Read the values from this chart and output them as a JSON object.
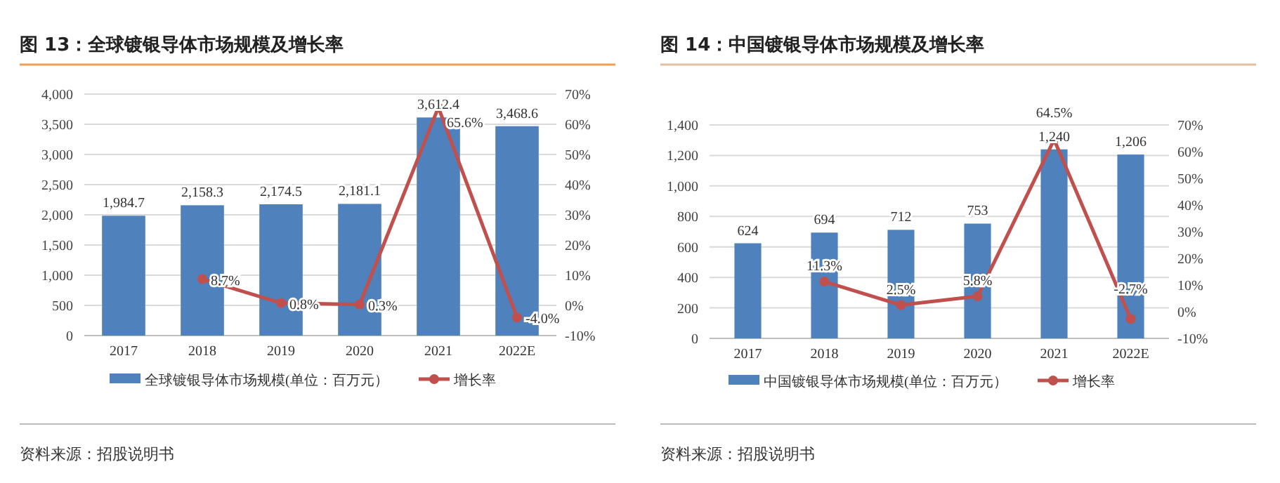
{
  "chart_data": [
    {
      "type": "bar",
      "title": "图 13：全球镀银导体市场规模及增长率",
      "categories": [
        "2017",
        "2018",
        "2019",
        "2020",
        "2021",
        "2022E"
      ],
      "series": [
        {
          "name": "全球镀银导体市场规模(单位：百万元）",
          "type": "bar",
          "color": "#4f81bd",
          "values": [
            1984.7,
            2158.3,
            2174.5,
            2181.1,
            3612.4,
            3468.6
          ],
          "value_labels": [
            "1,984.7",
            "2,158.3",
            "2,174.5",
            "2,181.1",
            "3,612.4",
            "3,468.6"
          ]
        },
        {
          "name": "增长率",
          "type": "line",
          "axis": "y2",
          "color": "#c0504d",
          "values": [
            null,
            8.7,
            0.8,
            0.3,
            65.6,
            -4.0
          ],
          "value_labels": [
            null,
            "8.7%",
            "0.8%",
            "0.3%",
            "65.6%",
            "-4.0%"
          ]
        }
      ],
      "ylim": [
        0,
        4000
      ],
      "yticks": [
        0,
        {
          "value": 500,
          "label": "500"
        },
        {
          "value": 1000,
          "label": "1,000"
        },
        {
          "value": 1500,
          "label": "1,500"
        },
        {
          "value": 2000,
          "label": "2,000"
        },
        {
          "value": 2500,
          "label": "2,500"
        },
        {
          "value": 3000,
          "label": "3,000"
        },
        {
          "value": 3500,
          "label": "3,500"
        },
        {
          "value": 4000,
          "label": "4,000"
        }
      ],
      "y2lim": [
        -10,
        70
      ],
      "y2ticks": [
        {
          "value": -10,
          "label": "-10%"
        },
        {
          "value": 0,
          "label": "0%"
        },
        {
          "value": 10,
          "label": "10%"
        },
        {
          "value": 20,
          "label": "20%"
        },
        {
          "value": 30,
          "label": "30%"
        },
        {
          "value": 40,
          "label": "40%"
        },
        {
          "value": 50,
          "label": "50%"
        },
        {
          "value": 60,
          "label": "60%"
        },
        {
          "value": 70,
          "label": "70%"
        }
      ],
      "grid": "y",
      "legend": "bottom",
      "marker": "circle",
      "annotations": [
        "资料来源：招股说明书"
      ]
    },
    {
      "type": "bar",
      "title": "图 14：中国镀银导体市场规模及增长率",
      "categories": [
        "2017",
        "2018",
        "2019",
        "2020",
        "2021",
        "2022E"
      ],
      "series": [
        {
          "name": "中国镀银导体市场规模(单位：百万元）",
          "type": "bar",
          "color": "#4f81bd",
          "values": [
            624,
            694,
            712,
            753,
            1240,
            1206
          ],
          "value_labels": [
            "624",
            "694",
            "712",
            "753",
            "1,240",
            "1,206"
          ]
        },
        {
          "name": "增长率",
          "type": "line",
          "axis": "y2",
          "color": "#c0504d",
          "values": [
            null,
            11.3,
            2.5,
            5.8,
            64.5,
            -2.7
          ],
          "value_labels": [
            null,
            "11.3%",
            "2.5%",
            "5.8%",
            "64.5%",
            "-2.7%"
          ]
        }
      ],
      "ylim": [
        0,
        1400
      ],
      "yticks": [
        0,
        {
          "value": 200,
          "label": "200"
        },
        {
          "value": 400,
          "label": "400"
        },
        {
          "value": 600,
          "label": "600"
        },
        {
          "value": 800,
          "label": "800"
        },
        {
          "value": 1000,
          "label": "1,000"
        },
        {
          "value": 1200,
          "label": "1,200"
        },
        {
          "value": 1400,
          "label": "1,400"
        }
      ],
      "y2lim": [
        -10,
        70
      ],
      "y2ticks": [
        {
          "value": -10,
          "label": "-10%"
        },
        {
          "value": 0,
          "label": "0%"
        },
        {
          "value": 10,
          "label": "10%"
        },
        {
          "value": 20,
          "label": "20%"
        },
        {
          "value": 30,
          "label": "30%"
        },
        {
          "value": 40,
          "label": "40%"
        },
        {
          "value": 50,
          "label": "50%"
        },
        {
          "value": 60,
          "label": "60%"
        },
        {
          "value": 70,
          "label": "70%"
        }
      ],
      "grid": "y",
      "legend": "bottom",
      "marker": "circle",
      "annotations": [
        "资料来源：招股说明书"
      ]
    }
  ]
}
